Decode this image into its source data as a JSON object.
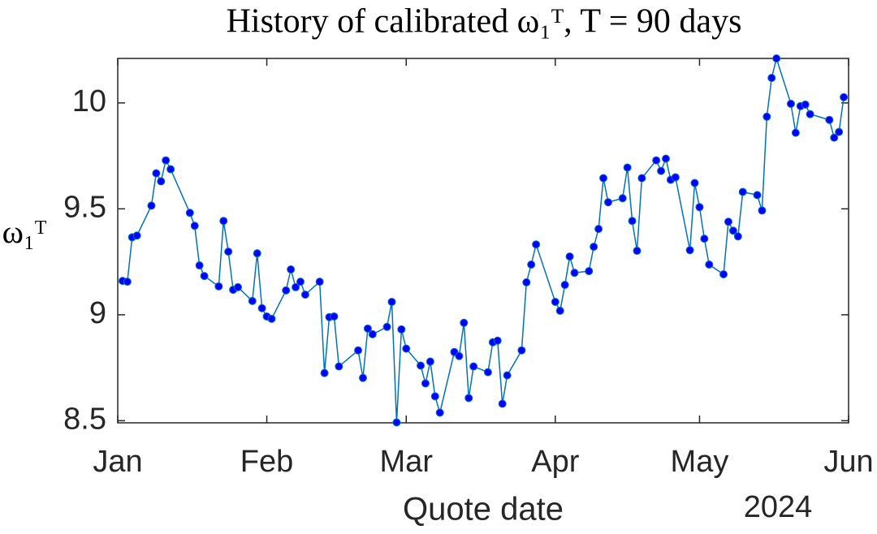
{
  "chart_data": {
    "type": "line",
    "title": "History of calibrated ω₁ᵀ, T = 90 days",
    "xlabel": "Quote date",
    "x_secondary_label": "2024",
    "ylabel": "ω₁ᵀ",
    "xlim": [
      0,
      152
    ],
    "xticks": [
      {
        "value": 0,
        "label": "Jan"
      },
      {
        "value": 31,
        "label": "Feb"
      },
      {
        "value": 60,
        "label": "Mar"
      },
      {
        "value": 91,
        "label": "Apr"
      },
      {
        "value": 121,
        "label": "May"
      },
      {
        "value": 152,
        "label": "Jun"
      }
    ],
    "ylim": [
      8.49,
      10.21
    ],
    "yticks": [
      8.5,
      9,
      9.5,
      10
    ],
    "grid": false,
    "x": [
      1,
      2,
      3,
      4,
      7,
      8,
      9,
      10,
      11,
      15,
      16,
      17,
      18,
      21,
      22,
      23,
      24,
      25,
      28,
      29,
      30,
      31,
      32,
      35,
      36,
      37,
      38,
      39,
      42,
      43,
      44,
      45,
      46,
      50,
      51,
      52,
      53,
      56,
      57,
      58,
      59,
      60,
      63,
      64,
      65,
      66,
      67,
      70,
      71,
      72,
      73,
      74,
      77,
      78,
      79,
      80,
      81,
      84,
      85,
      86,
      87,
      91,
      92,
      93,
      94,
      95,
      98,
      99,
      100,
      101,
      102,
      105,
      106,
      107,
      108,
      109,
      112,
      113,
      114,
      115,
      116,
      119,
      120,
      121,
      122,
      123,
      126,
      127,
      128,
      129,
      130,
      133,
      134,
      135,
      136,
      137,
      140,
      141,
      142,
      143,
      144,
      148,
      149,
      150,
      151
    ],
    "series": [
      {
        "name": "ω₁ᵀ",
        "color": "#0072bd",
        "marker_color": "#0000ff",
        "values": [
          9.16,
          9.156,
          9.366,
          9.374,
          9.515,
          9.668,
          9.63,
          9.729,
          9.687,
          9.481,
          9.42,
          9.233,
          9.183,
          9.134,
          9.443,
          9.298,
          9.118,
          9.13,
          9.065,
          9.29,
          9.031,
          8.992,
          8.981,
          9.115,
          9.214,
          9.13,
          9.156,
          9.095,
          9.156,
          8.725,
          8.989,
          8.992,
          8.756,
          8.832,
          8.702,
          8.935,
          8.908,
          8.943,
          9.061,
          8.492,
          8.931,
          8.84,
          8.76,
          8.676,
          8.779,
          8.615,
          8.538,
          8.824,
          8.805,
          8.962,
          8.607,
          8.756,
          8.729,
          8.87,
          8.878,
          8.58,
          8.714,
          8.832,
          9.153,
          9.237,
          9.332,
          9.061,
          9.019,
          9.141,
          9.275,
          9.198,
          9.206,
          9.321,
          9.405,
          9.645,
          9.531,
          9.55,
          9.695,
          9.443,
          9.302,
          9.645,
          9.729,
          9.679,
          9.737,
          9.637,
          9.649,
          9.305,
          9.622,
          9.508,
          9.359,
          9.237,
          9.191,
          9.439,
          9.397,
          9.37,
          9.58,
          9.565,
          9.492,
          9.935,
          10.118,
          10.21,
          9.996,
          9.859,
          9.985,
          9.992,
          9.947,
          9.92,
          9.836,
          9.863,
          10.027
        ]
      }
    ]
  }
}
